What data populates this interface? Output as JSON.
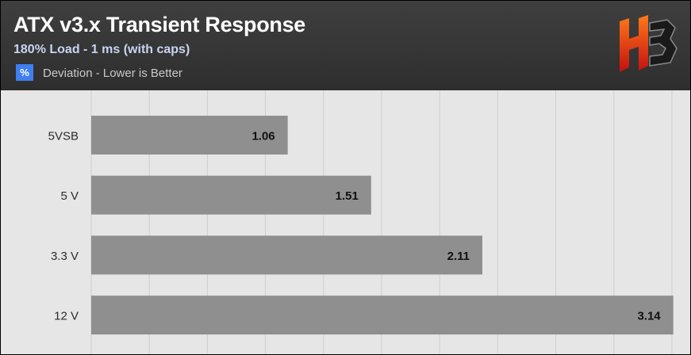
{
  "header": {
    "title": "ATX v3.x Transient Response",
    "subtitle": "180% Load - 1 ms (with caps)",
    "legend_symbol": "%",
    "legend_label": "Deviation - Lower is Better",
    "logo_icon": "hb-logo-icon",
    "legend_color": "#3f7ff0"
  },
  "chart_data": {
    "type": "bar",
    "orientation": "horizontal",
    "categories": [
      "5VSB",
      "5 V",
      "3.3 V",
      "12 V"
    ],
    "series": [
      {
        "values": [
          1.06,
          1.51,
          2.11,
          3.14
        ]
      }
    ],
    "title": "ATX v3.x Transient Response",
    "subtitle": "180% Load - 1 ms (with caps)",
    "xlabel": "",
    "ylabel": "",
    "xlim": [
      0,
      3.15
    ],
    "grid": true,
    "legend": "top-left",
    "bar_color": "#8f8f8f",
    "grid_color": "#cfcfcf"
  }
}
